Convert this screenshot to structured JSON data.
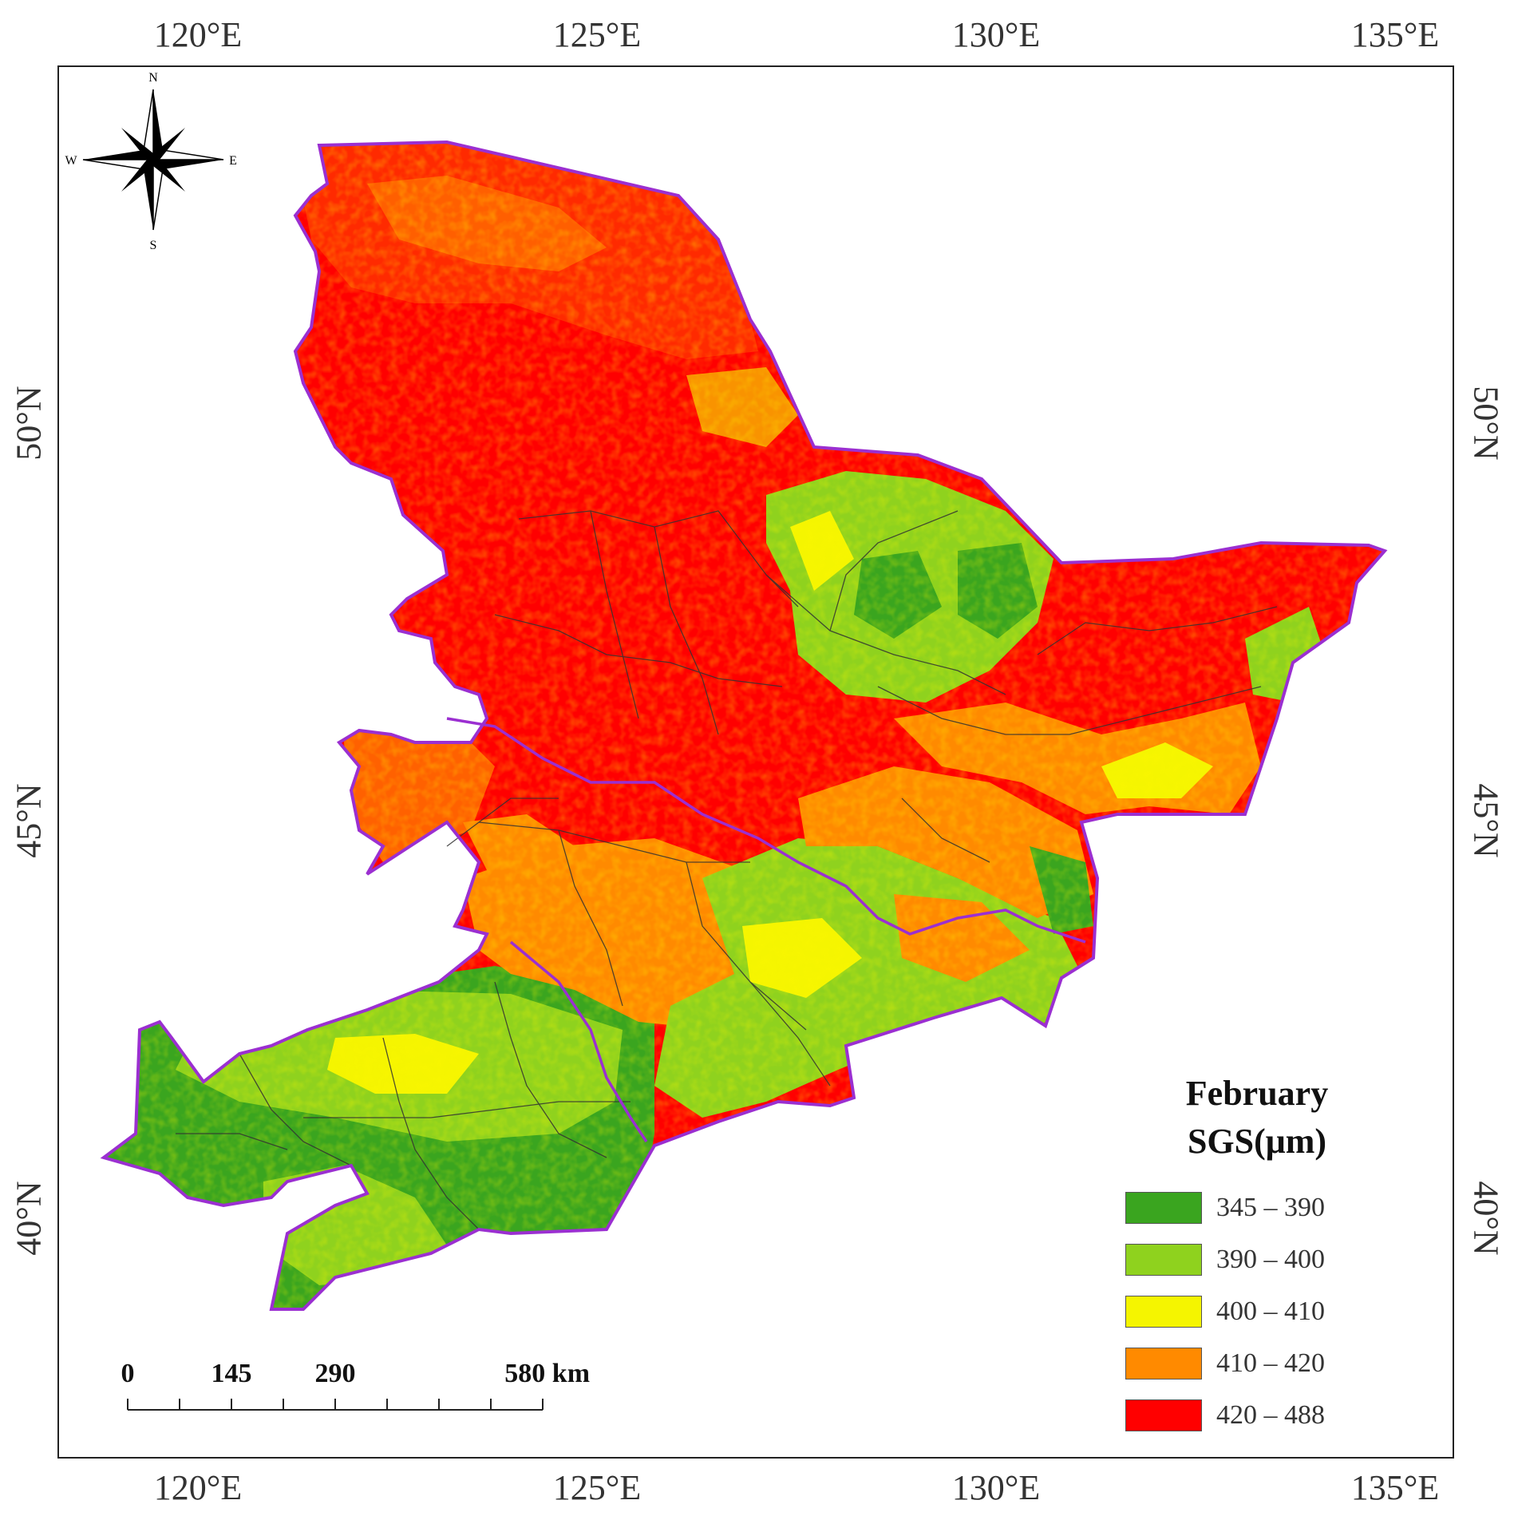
{
  "legend": {
    "title_line1": "February",
    "title_line2": "SGS(μm)",
    "classes": [
      {
        "label": "345 – 390",
        "color": "#3aa51f"
      },
      {
        "label": "390 – 400",
        "color": "#8fd21e"
      },
      {
        "label": "400 – 410",
        "color": "#f5f500"
      },
      {
        "label": "410 – 420",
        "color": "#ff8a00"
      },
      {
        "label": "420 – 488",
        "color": "#ff0000"
      }
    ]
  },
  "axes": {
    "longitude_labels": [
      "120°E",
      "125°E",
      "130°E",
      "135°E"
    ],
    "latitude_labels": [
      "50°N",
      "45°N",
      "40°N"
    ]
  },
  "compass": {
    "north": "N",
    "south": "S",
    "east": "E",
    "west": "W"
  },
  "scalebar": {
    "labels": [
      "0",
      "145",
      "290",
      "580 km"
    ],
    "values_km": [
      0,
      145,
      290,
      580
    ]
  },
  "colors": {
    "region_outline": "#9b2fd1",
    "frame": "#222222"
  }
}
